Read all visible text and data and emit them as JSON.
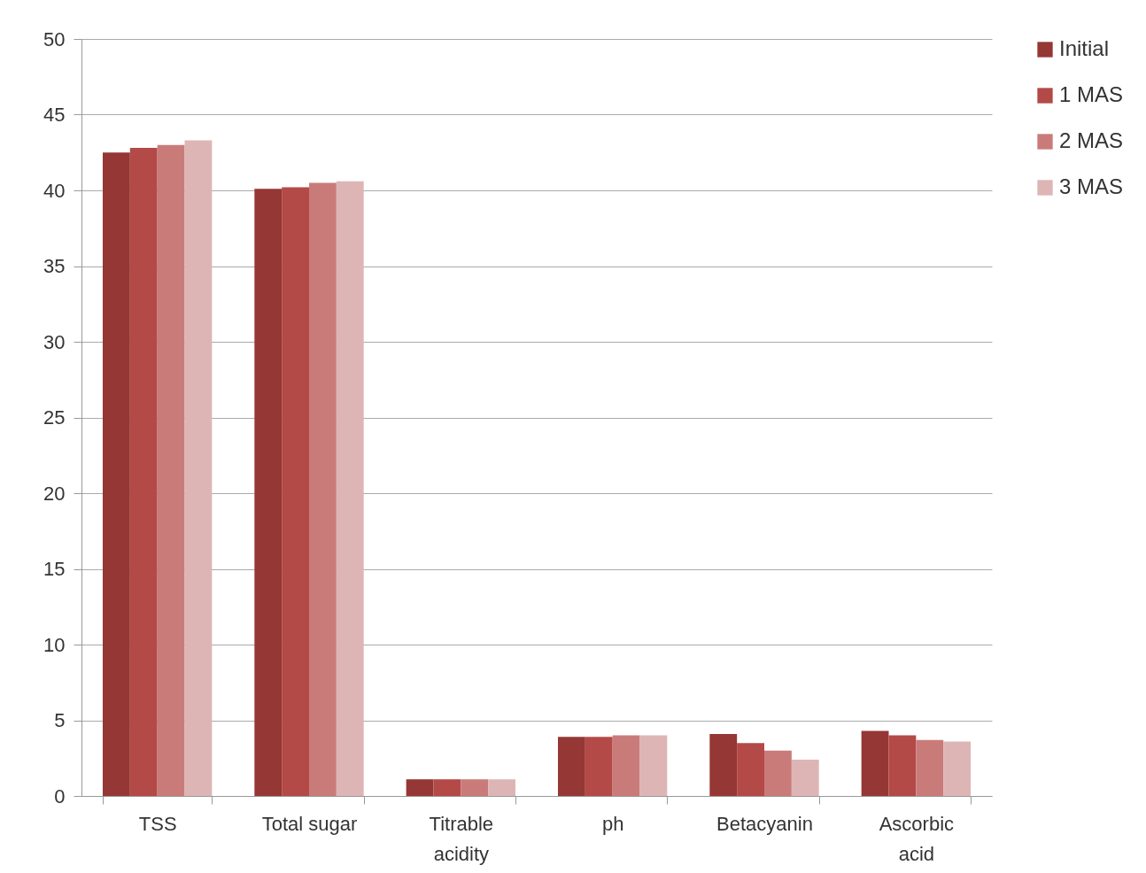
{
  "chart_data": {
    "type": "bar",
    "categories": [
      "TSS",
      "Total sugar",
      "Titrable acidity",
      "ph",
      "Betacyanin",
      "Ascorbic acid"
    ],
    "series": [
      {
        "name": "Initial",
        "color": "#953735",
        "values": [
          42.5,
          40.1,
          1.1,
          3.9,
          4.1,
          4.3
        ]
      },
      {
        "name": "1 MAS",
        "color": "#b34a47",
        "values": [
          42.8,
          40.2,
          1.1,
          3.9,
          3.5,
          4.0
        ]
      },
      {
        "name": "2 MAS",
        "color": "#c97b7a",
        "values": [
          43.0,
          40.5,
          1.1,
          4.0,
          3.0,
          3.7
        ]
      },
      {
        "name": "3 MAS",
        "color": "#deb5b5",
        "values": [
          43.3,
          40.6,
          1.1,
          4.0,
          2.4,
          3.6
        ]
      }
    ],
    "ylim": [
      0,
      50
    ],
    "yticks": [
      0,
      5,
      10,
      15,
      20,
      25,
      30,
      35,
      40,
      45,
      50
    ],
    "grid": "y",
    "legend": "right"
  }
}
